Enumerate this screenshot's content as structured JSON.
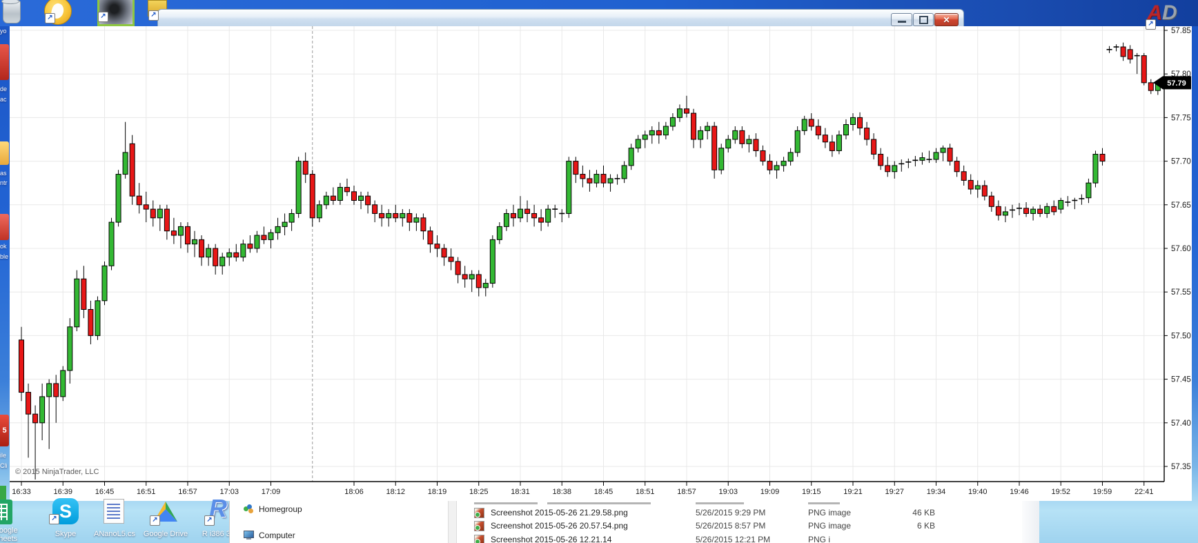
{
  "window": {
    "buttons": {
      "minimize": "minimize",
      "maximize": "maximize",
      "close": "close"
    }
  },
  "chart": {
    "copyright": "© 2015 NinjaTrader, LLC",
    "price_marker": "57.79",
    "chart_data": {
      "type": "candlestick",
      "title": "",
      "x_tick_labels": [
        "16:33",
        "16:39",
        "16:45",
        "16:51",
        "16:57",
        "17:03",
        "17:09",
        "18:06",
        "18:12",
        "18:19",
        "18:25",
        "18:31",
        "18:38",
        "18:45",
        "18:51",
        "18:57",
        "19:03",
        "19:09",
        "19:15",
        "19:21",
        "19:27",
        "19:34",
        "19:40",
        "19:46",
        "19:52",
        "19:59",
        "22:41"
      ],
      "y_tick_labels": [
        "57.85",
        "57.80",
        "57.75",
        "57.70",
        "57.65",
        "57.60",
        "57.55",
        "57.50",
        "57.45",
        "57.40",
        "57.35"
      ],
      "y_range": [
        57.333,
        57.853
      ],
      "bars_per_x_tick": 6,
      "session_break_bar_index": 42,
      "last_price": 57.79,
      "grid": true,
      "colors": {
        "up": "#33b833",
        "down": "#e81717",
        "wick": "#000000",
        "grid": "#e8e8e8",
        "axis": "#000000",
        "session_break": "#9a9a9a",
        "marker_bg": "#000000",
        "marker_text": "#ffffff",
        "background": "#ffffff"
      },
      "ohlc": [
        [
          57.495,
          57.51,
          57.425,
          57.435
        ],
        [
          57.435,
          57.445,
          57.36,
          57.41
        ],
        [
          57.41,
          57.42,
          57.335,
          57.4
        ],
        [
          57.4,
          57.445,
          57.38,
          57.43
        ],
        [
          57.43,
          57.45,
          57.37,
          57.445
        ],
        [
          57.445,
          57.455,
          57.4,
          57.43
        ],
        [
          57.43,
          57.465,
          57.425,
          57.46
        ],
        [
          57.46,
          57.52,
          57.445,
          57.51
        ],
        [
          57.51,
          57.575,
          57.505,
          57.565
        ],
        [
          57.565,
          57.58,
          57.52,
          57.53
        ],
        [
          57.53,
          57.54,
          57.49,
          57.5
        ],
        [
          57.5,
          57.545,
          57.495,
          57.54
        ],
        [
          57.54,
          57.585,
          57.535,
          57.58
        ],
        [
          57.58,
          57.635,
          57.575,
          57.63
        ],
        [
          57.63,
          57.69,
          57.625,
          57.685
        ],
        [
          57.685,
          57.745,
          57.68,
          57.71
        ],
        [
          57.72,
          57.73,
          57.65,
          57.66
        ],
        [
          57.66,
          57.675,
          57.64,
          57.65
        ],
        [
          57.65,
          57.665,
          57.63,
          57.645
        ],
        [
          57.645,
          57.655,
          57.625,
          57.635
        ],
        [
          57.635,
          57.65,
          57.62,
          57.645
        ],
        [
          57.645,
          57.65,
          57.61,
          57.62
        ],
        [
          57.62,
          57.635,
          57.605,
          57.615
        ],
        [
          57.615,
          57.63,
          57.6,
          57.625
        ],
        [
          57.625,
          57.63,
          57.595,
          57.605
        ],
        [
          57.605,
          57.62,
          57.59,
          57.61
        ],
        [
          57.61,
          57.615,
          57.58,
          57.59
        ],
        [
          57.59,
          57.605,
          57.58,
          57.6
        ],
        [
          57.6,
          57.605,
          57.57,
          57.58
        ],
        [
          57.58,
          57.595,
          57.57,
          57.59
        ],
        [
          57.59,
          57.6,
          57.58,
          57.595
        ],
        [
          57.595,
          57.605,
          57.585,
          57.59
        ],
        [
          57.59,
          57.61,
          57.585,
          57.605
        ],
        [
          57.605,
          57.615,
          57.595,
          57.6
        ],
        [
          57.6,
          57.62,
          57.595,
          57.615
        ],
        [
          57.615,
          57.625,
          57.605,
          57.61
        ],
        [
          57.61,
          57.622,
          57.6,
          57.618
        ],
        [
          57.618,
          57.635,
          57.61,
          57.625
        ],
        [
          57.625,
          57.64,
          57.615,
          57.63
        ],
        [
          57.63,
          57.645,
          57.62,
          57.64
        ],
        [
          57.64,
          57.705,
          57.635,
          57.7
        ],
        [
          57.7,
          57.71,
          57.675,
          57.685
        ],
        [
          57.685,
          57.69,
          57.625,
          57.635
        ],
        [
          57.635,
          57.655,
          57.63,
          57.65
        ],
        [
          57.65,
          57.665,
          57.645,
          57.66
        ],
        [
          57.66,
          57.67,
          57.65,
          57.655
        ],
        [
          57.655,
          57.675,
          57.65,
          57.67
        ],
        [
          57.67,
          57.68,
          57.66,
          57.665
        ],
        [
          57.665,
          57.672,
          57.65,
          57.655
        ],
        [
          57.655,
          57.665,
          57.645,
          57.66
        ],
        [
          57.66,
          57.665,
          57.64,
          57.65
        ],
        [
          57.65,
          57.655,
          57.63,
          57.64
        ],
        [
          57.64,
          57.65,
          57.625,
          57.635
        ],
        [
          57.635,
          57.645,
          57.625,
          57.64
        ],
        [
          57.64,
          57.65,
          57.63,
          57.635
        ],
        [
          57.635,
          57.645,
          57.625,
          57.64
        ],
        [
          57.64,
          57.645,
          57.62,
          57.63
        ],
        [
          57.63,
          57.64,
          57.62,
          57.635
        ],
        [
          57.635,
          57.64,
          57.61,
          57.62
        ],
        [
          57.62,
          57.625,
          57.595,
          57.605
        ],
        [
          57.605,
          57.615,
          57.59,
          57.6
        ],
        [
          57.6,
          57.605,
          57.58,
          57.59
        ],
        [
          57.59,
          57.6,
          57.575,
          57.585
        ],
        [
          57.585,
          57.59,
          57.56,
          57.57
        ],
        [
          57.57,
          57.58,
          57.555,
          57.565
        ],
        [
          57.565,
          57.575,
          57.55,
          57.57
        ],
        [
          57.57,
          57.575,
          57.545,
          57.555
        ],
        [
          57.555,
          57.565,
          57.545,
          57.56
        ],
        [
          57.56,
          57.615,
          57.555,
          57.61
        ],
        [
          57.61,
          57.63,
          57.605,
          57.625
        ],
        [
          57.625,
          57.645,
          57.62,
          57.64
        ],
        [
          57.64,
          57.65,
          57.625,
          57.635
        ],
        [
          57.635,
          57.66,
          57.63,
          57.645
        ],
        [
          57.645,
          57.655,
          57.63,
          57.64
        ],
        [
          57.64,
          57.65,
          57.625,
          57.635
        ],
        [
          57.635,
          57.645,
          57.62,
          57.63
        ],
        [
          57.63,
          57.65,
          57.625,
          57.645
        ],
        [
          57.645,
          57.65,
          57.635,
          57.645
        ],
        [
          57.64,
          57.645,
          57.63,
          57.64
        ],
        [
          57.64,
          57.705,
          57.635,
          57.7
        ],
        [
          57.7,
          57.705,
          57.675,
          57.685
        ],
        [
          57.685,
          57.695,
          57.67,
          57.68
        ],
        [
          57.68,
          57.69,
          57.665,
          57.675
        ],
        [
          57.675,
          57.69,
          57.67,
          57.685
        ],
        [
          57.685,
          57.695,
          57.67,
          57.675
        ],
        [
          57.675,
          57.685,
          57.665,
          57.68
        ],
        [
          57.68,
          57.685,
          57.673,
          57.68
        ],
        [
          57.68,
          57.7,
          57.675,
          57.695
        ],
        [
          57.695,
          57.72,
          57.69,
          57.715
        ],
        [
          57.715,
          57.73,
          57.71,
          57.725
        ],
        [
          57.725,
          57.735,
          57.715,
          57.73
        ],
        [
          57.73,
          57.74,
          57.72,
          57.735
        ],
        [
          57.735,
          57.745,
          57.72,
          57.73
        ],
        [
          57.73,
          57.745,
          57.725,
          57.74
        ],
        [
          57.74,
          57.755,
          57.735,
          57.75
        ],
        [
          57.75,
          57.765,
          57.745,
          57.76
        ],
        [
          57.76,
          57.775,
          57.75,
          57.755
        ],
        [
          57.755,
          57.76,
          57.715,
          57.725
        ],
        [
          57.725,
          57.74,
          57.715,
          57.735
        ],
        [
          57.735,
          57.745,
          57.725,
          57.74
        ],
        [
          57.74,
          57.745,
          57.68,
          57.69
        ],
        [
          57.69,
          57.72,
          57.685,
          57.715
        ],
        [
          57.715,
          57.73,
          57.71,
          57.725
        ],
        [
          57.725,
          57.74,
          57.72,
          57.735
        ],
        [
          57.735,
          57.74,
          57.715,
          57.72
        ],
        [
          57.72,
          57.73,
          57.71,
          57.725
        ],
        [
          57.725,
          57.732,
          57.705,
          57.712
        ],
        [
          57.712,
          57.718,
          57.695,
          57.7
        ],
        [
          57.7,
          57.708,
          57.685,
          57.69
        ],
        [
          57.69,
          57.7,
          57.68,
          57.695
        ],
        [
          57.695,
          57.705,
          57.688,
          57.7
        ],
        [
          57.7,
          57.715,
          57.695,
          57.71
        ],
        [
          57.71,
          57.74,
          57.705,
          57.735
        ],
        [
          57.735,
          57.752,
          57.73,
          57.748
        ],
        [
          57.748,
          57.755,
          57.735,
          57.74
        ],
        [
          57.74,
          57.748,
          57.725,
          57.73
        ],
        [
          57.73,
          57.738,
          57.715,
          57.722
        ],
        [
          57.722,
          57.73,
          57.705,
          57.712
        ],
        [
          57.712,
          57.735,
          57.708,
          57.73
        ],
        [
          57.73,
          57.748,
          57.725,
          57.742
        ],
        [
          57.742,
          57.755,
          57.735,
          57.75
        ],
        [
          57.75,
          57.756,
          57.73,
          57.738
        ],
        [
          57.738,
          57.745,
          57.718,
          57.725
        ],
        [
          57.725,
          57.732,
          57.702,
          57.708
        ],
        [
          57.708,
          57.715,
          57.69,
          57.695
        ],
        [
          57.695,
          57.705,
          57.682,
          57.688
        ],
        [
          57.688,
          57.7,
          57.68,
          57.695
        ],
        [
          57.695,
          57.702,
          57.688,
          57.697
        ],
        [
          57.697,
          57.703,
          57.692,
          57.699
        ],
        [
          57.699,
          57.706,
          57.694,
          57.701
        ],
        [
          57.701,
          57.71,
          57.696,
          57.704
        ],
        [
          57.704,
          57.712,
          57.698,
          57.702
        ],
        [
          57.702,
          57.715,
          57.698,
          57.71
        ],
        [
          57.71,
          57.718,
          57.7,
          57.715
        ],
        [
          57.715,
          57.72,
          57.695,
          57.7
        ],
        [
          57.7,
          57.705,
          57.682,
          57.688
        ],
        [
          57.688,
          57.695,
          57.672,
          57.678
        ],
        [
          57.678,
          57.685,
          57.662,
          57.668
        ],
        [
          57.668,
          57.678,
          57.658,
          57.672
        ],
        [
          57.672,
          57.678,
          57.655,
          57.66
        ],
        [
          57.66,
          57.665,
          57.642,
          57.648
        ],
        [
          57.648,
          57.655,
          57.632,
          57.638
        ],
        [
          57.638,
          57.648,
          57.63,
          57.642
        ],
        [
          57.642,
          57.65,
          57.635,
          57.644
        ],
        [
          57.644,
          57.652,
          57.638,
          57.646
        ],
        [
          57.646,
          57.653,
          57.636,
          57.64
        ],
        [
          57.64,
          57.648,
          57.632,
          57.645
        ],
        [
          57.645,
          57.65,
          57.636,
          57.64
        ],
        [
          57.64,
          57.652,
          57.635,
          57.648
        ],
        [
          57.648,
          57.655,
          57.638,
          57.642
        ],
        [
          57.645,
          57.658,
          57.64,
          57.655
        ],
        [
          57.655,
          57.66,
          57.648,
          57.653
        ],
        [
          57.653,
          57.658,
          57.645,
          57.655
        ],
        [
          57.655,
          57.662,
          57.65,
          57.657
        ],
        [
          57.658,
          57.68,
          57.652,
          57.675
        ],
        [
          57.675,
          57.712,
          57.67,
          57.708
        ],
        [
          57.708,
          57.715,
          57.695,
          57.7
        ],
        [
          57.828,
          57.832,
          57.824,
          57.828
        ],
        [
          57.83,
          57.834,
          57.826,
          57.831
        ],
        [
          57.831,
          57.836,
          57.815,
          57.82
        ],
        [
          57.828,
          57.833,
          57.812,
          57.817
        ],
        [
          57.82,
          57.824,
          57.8,
          57.821
        ],
        [
          57.821,
          57.824,
          57.787,
          57.79
        ],
        [
          57.79,
          57.794,
          57.777,
          57.781
        ],
        [
          57.781,
          57.793,
          57.776,
          57.79
        ]
      ]
    }
  },
  "explorer": {
    "nav": [
      {
        "label": "Homegroup"
      },
      {
        "label": "Computer"
      }
    ],
    "columns": [
      "Name",
      "Date",
      "Type",
      "Size"
    ],
    "rows": [
      {
        "name": "Screenshot 2015-05-26 21.29.58.png",
        "date": "5/26/2015 9:29 PM",
        "type": "PNG image",
        "size": "46 KB"
      },
      {
        "name": "Screenshot 2015-05-26 20.57.54.png",
        "date": "5/26/2015 8:57 PM",
        "type": "PNG image",
        "size": "6 KB"
      },
      {
        "name": "Screenshot 2015-05-26 12.21.14",
        "date": "5/26/2015 12:21 PM",
        "type": "PNG i",
        "size": ""
      }
    ]
  },
  "desktop": {
    "bottom_icons": [
      {
        "label1": "Google",
        "label2": "Sheets"
      },
      {
        "label1": "Skype",
        "label2": ""
      },
      {
        "label1": "ANanoL5.cs",
        "label2": ""
      },
      {
        "label1": "Google Drive",
        "label2": ""
      },
      {
        "label1": "R i386 3.1",
        "label2": ""
      }
    ],
    "skype_glyph": "S",
    "r_glyph": "R",
    "ad_glyph_a": "A",
    "ad_glyph_d": "D",
    "edge_fragments": [
      "yo",
      "de",
      "ac",
      "as",
      "ntr",
      "ok",
      "ble",
      "5",
      "ile",
      "Cli"
    ],
    "shortcut_arrow": "↗"
  }
}
